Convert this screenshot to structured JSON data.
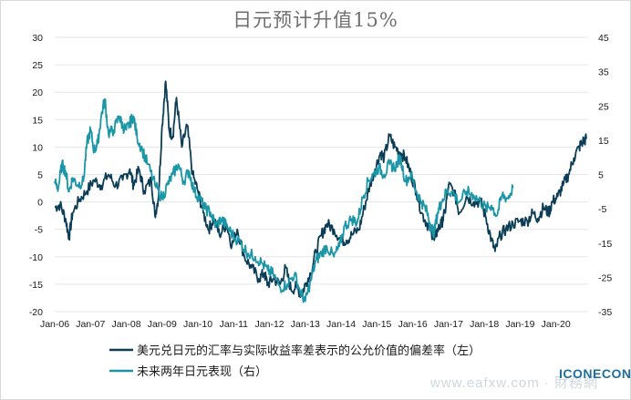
{
  "chart_data": {
    "type": "line",
    "title": "日元预计升值15%",
    "y_left": {
      "ticks": [
        "30",
        "25",
        "20",
        "15",
        "10",
        "5",
        "0",
        "-5",
        "-10",
        "-15",
        "-20"
      ],
      "ylim": [
        -20,
        30
      ]
    },
    "y_right": {
      "ticks": [
        "45",
        "35",
        "25",
        "15",
        "5",
        "-5",
        "-15",
        "-25",
        "-35"
      ],
      "ylim": [
        -35,
        45
      ]
    },
    "x_ticks": [
      "Jan-06",
      "Jan-07",
      "Jan-08",
      "Jan-09",
      "Jan-10",
      "Jan-11",
      "Jan-12",
      "Jan-13",
      "Jan-14",
      "Jan-15",
      "Jan-16",
      "Jan-17",
      "Jan-18",
      "Jan-19",
      "Jan-20"
    ],
    "xlim": [
      2006.0,
      2020.9
    ],
    "grid": "horizontal",
    "series": [
      {
        "name": "美元兑日元的汇率与实际收益率差表示的公允价值的偏差率（左）",
        "axis": "left",
        "color": "#0c3d57",
        "points": [
          [
            2006.0,
            -1
          ],
          [
            2006.15,
            -0.5
          ],
          [
            2006.3,
            -3
          ],
          [
            2006.4,
            -6.5
          ],
          [
            2006.5,
            -2
          ],
          [
            2006.7,
            0.5
          ],
          [
            2006.9,
            2
          ],
          [
            2007.1,
            4
          ],
          [
            2007.3,
            3
          ],
          [
            2007.5,
            5
          ],
          [
            2007.7,
            3
          ],
          [
            2007.9,
            4
          ],
          [
            2008.1,
            6
          ],
          [
            2008.2,
            3
          ],
          [
            2008.35,
            6
          ],
          [
            2008.5,
            2
          ],
          [
            2008.7,
            4
          ],
          [
            2008.8,
            -2.5
          ],
          [
            2008.9,
            1
          ],
          [
            2009.0,
            14
          ],
          [
            2009.1,
            22
          ],
          [
            2009.2,
            13
          ],
          [
            2009.3,
            12
          ],
          [
            2009.4,
            19
          ],
          [
            2009.55,
            10
          ],
          [
            2009.7,
            14
          ],
          [
            2009.85,
            5
          ],
          [
            2010.0,
            2
          ],
          [
            2010.15,
            -2
          ],
          [
            2010.3,
            -5
          ],
          [
            2010.45,
            -3
          ],
          [
            2010.6,
            -6
          ],
          [
            2010.8,
            -4
          ],
          [
            2010.95,
            -8
          ],
          [
            2011.1,
            -5
          ],
          [
            2011.3,
            -10
          ],
          [
            2011.5,
            -12
          ],
          [
            2011.7,
            -14
          ],
          [
            2011.85,
            -13
          ],
          [
            2011.95,
            -15
          ],
          [
            2012.1,
            -14
          ],
          [
            2012.3,
            -15
          ],
          [
            2012.45,
            -12
          ],
          [
            2012.6,
            -16
          ],
          [
            2012.75,
            -15.5
          ],
          [
            2012.9,
            -17
          ],
          [
            2013.0,
            -15
          ],
          [
            2013.15,
            -13
          ],
          [
            2013.3,
            -9
          ],
          [
            2013.45,
            -6
          ],
          [
            2013.6,
            -4
          ],
          [
            2013.8,
            -5
          ],
          [
            2014.0,
            -7
          ],
          [
            2014.15,
            -7
          ],
          [
            2014.3,
            -6
          ],
          [
            2014.5,
            -5
          ],
          [
            2014.65,
            -1
          ],
          [
            2014.8,
            3
          ],
          [
            2014.95,
            6
          ],
          [
            2015.1,
            9
          ],
          [
            2015.2,
            8
          ],
          [
            2015.35,
            12
          ],
          [
            2015.5,
            10
          ],
          [
            2015.65,
            9
          ],
          [
            2015.8,
            8
          ],
          [
            2015.95,
            5
          ],
          [
            2016.1,
            2
          ],
          [
            2016.25,
            -2
          ],
          [
            2016.4,
            -4
          ],
          [
            2016.5,
            -5
          ],
          [
            2016.6,
            -7
          ],
          [
            2016.7,
            -5
          ],
          [
            2016.8,
            -4
          ],
          [
            2016.9,
            -2
          ],
          [
            2017.0,
            3
          ],
          [
            2017.15,
            2
          ],
          [
            2017.3,
            -2
          ],
          [
            2017.5,
            1
          ],
          [
            2017.7,
            0
          ],
          [
            2017.9,
            0
          ],
          [
            2018.05,
            -3
          ],
          [
            2018.2,
            -7
          ],
          [
            2018.3,
            -9
          ],
          [
            2018.45,
            -6
          ],
          [
            2018.6,
            -5
          ],
          [
            2018.8,
            -4
          ],
          [
            2019.0,
            -3.5
          ],
          [
            2019.2,
            -3.5
          ],
          [
            2019.35,
            -2
          ],
          [
            2019.5,
            -3
          ],
          [
            2019.65,
            -1
          ],
          [
            2019.8,
            -2
          ],
          [
            2019.9,
            0
          ],
          [
            2020.05,
            1
          ],
          [
            2020.2,
            3
          ],
          [
            2020.35,
            5
          ],
          [
            2020.5,
            8
          ],
          [
            2020.65,
            10
          ],
          [
            2020.75,
            11
          ],
          [
            2020.85,
            11.5
          ]
        ]
      },
      {
        "name": "未来两年日元表现（右）",
        "axis": "right",
        "color": "#1b96a6",
        "points": [
          [
            2006.0,
            3
          ],
          [
            2006.1,
            1
          ],
          [
            2006.2,
            8
          ],
          [
            2006.3,
            6
          ],
          [
            2006.4,
            0
          ],
          [
            2006.5,
            4
          ],
          [
            2006.65,
            2
          ],
          [
            2006.8,
            3
          ],
          [
            2006.9,
            14
          ],
          [
            2007.0,
            18
          ],
          [
            2007.1,
            12
          ],
          [
            2007.2,
            14
          ],
          [
            2007.3,
            22
          ],
          [
            2007.4,
            27
          ],
          [
            2007.5,
            17
          ],
          [
            2007.65,
            18
          ],
          [
            2007.8,
            22
          ],
          [
            2007.9,
            19
          ],
          [
            2008.0,
            18
          ],
          [
            2008.1,
            20
          ],
          [
            2008.2,
            22
          ],
          [
            2008.3,
            16
          ],
          [
            2008.45,
            12
          ],
          [
            2008.6,
            8
          ],
          [
            2008.8,
            2
          ],
          [
            2009.0,
            -2
          ],
          [
            2009.15,
            2
          ],
          [
            2009.3,
            5
          ],
          [
            2009.45,
            8
          ],
          [
            2009.6,
            3
          ],
          [
            2009.75,
            6
          ],
          [
            2009.9,
            0
          ],
          [
            2010.05,
            -2
          ],
          [
            2010.2,
            -5
          ],
          [
            2010.35,
            -6
          ],
          [
            2010.5,
            -10
          ],
          [
            2010.65,
            -8
          ],
          [
            2010.8,
            -10
          ],
          [
            2011.0,
            -13
          ],
          [
            2011.2,
            -15
          ],
          [
            2011.4,
            -18
          ],
          [
            2011.6,
            -19
          ],
          [
            2011.8,
            -21
          ],
          [
            2011.95,
            -23
          ],
          [
            2012.1,
            -24
          ],
          [
            2012.3,
            -28
          ],
          [
            2012.5,
            -27
          ],
          [
            2012.7,
            -24
          ],
          [
            2012.85,
            -29
          ],
          [
            2013.0,
            -32
          ],
          [
            2013.15,
            -26
          ],
          [
            2013.3,
            -20
          ],
          [
            2013.45,
            -18
          ],
          [
            2013.6,
            -16
          ],
          [
            2013.8,
            -19
          ],
          [
            2013.95,
            -16
          ],
          [
            2014.1,
            -10
          ],
          [
            2014.3,
            -8
          ],
          [
            2014.45,
            -9
          ],
          [
            2014.6,
            -2
          ],
          [
            2014.75,
            3
          ],
          [
            2014.9,
            5
          ],
          [
            2015.05,
            7
          ],
          [
            2015.2,
            5
          ],
          [
            2015.35,
            8
          ],
          [
            2015.5,
            7
          ],
          [
            2015.65,
            10
          ],
          [
            2015.8,
            3
          ],
          [
            2015.95,
            5
          ],
          [
            2016.1,
            0
          ],
          [
            2016.25,
            -3
          ],
          [
            2016.4,
            -6
          ],
          [
            2016.5,
            -10
          ],
          [
            2016.6,
            -12
          ],
          [
            2016.7,
            -6
          ],
          [
            2016.8,
            -3
          ],
          [
            2016.95,
            0
          ],
          [
            2017.1,
            0
          ],
          [
            2017.3,
            -3
          ],
          [
            2017.5,
            0
          ],
          [
            2017.7,
            -1
          ],
          [
            2017.9,
            -3
          ],
          [
            2018.05,
            -5
          ],
          [
            2018.2,
            -4
          ],
          [
            2018.35,
            -7
          ],
          [
            2018.5,
            -1
          ],
          [
            2018.65,
            -2
          ],
          [
            2018.8,
            1
          ]
        ]
      }
    ],
    "legend": [
      "美元兑日元的汇率与实际收益率差表示的公允价值的偏差率（左）",
      "未来两年日元表现（右）"
    ],
    "legend_position": "bottom-left"
  },
  "watermark": "www.eafxw.com · 財務網",
  "logo": "ICONECON"
}
